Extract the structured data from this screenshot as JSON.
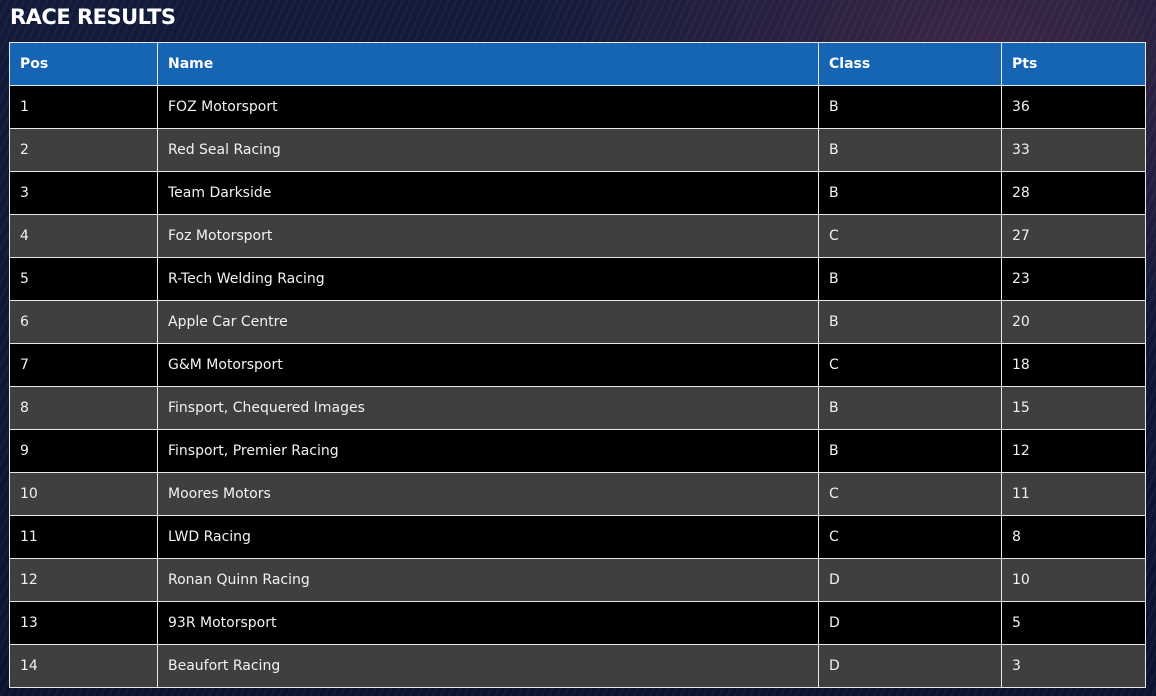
{
  "page": {
    "title": "RACE RESULTS"
  },
  "table": {
    "headers": {
      "pos": "Pos",
      "name": "Name",
      "class": "Class",
      "pts": "Pts"
    },
    "rows": [
      {
        "pos": "1",
        "name": "FOZ Motorsport",
        "class": "B",
        "pts": "36"
      },
      {
        "pos": "2",
        "name": "Red Seal Racing",
        "class": "B",
        "pts": "33"
      },
      {
        "pos": "3",
        "name": "Team Darkside",
        "class": "B",
        "pts": "28"
      },
      {
        "pos": "4",
        "name": "Foz Motorsport",
        "class": "C",
        "pts": "27"
      },
      {
        "pos": "5",
        "name": "R-Tech Welding Racing",
        "class": "B",
        "pts": "23"
      },
      {
        "pos": "6",
        "name": "Apple Car Centre",
        "class": "B",
        "pts": "20"
      },
      {
        "pos": "7",
        "name": "G&M Motorsport",
        "class": "C",
        "pts": "18"
      },
      {
        "pos": "8",
        "name": "Finsport, Chequered Images",
        "class": "B",
        "pts": "15"
      },
      {
        "pos": "9",
        "name": "Finsport, Premier Racing",
        "class": "B",
        "pts": "12"
      },
      {
        "pos": "10",
        "name": "Moores Motors",
        "class": "C",
        "pts": "11"
      },
      {
        "pos": "11",
        "name": "LWD Racing",
        "class": "C",
        "pts": "8"
      },
      {
        "pos": "12",
        "name": "Ronan Quinn Racing",
        "class": "D",
        "pts": "10"
      },
      {
        "pos": "13",
        "name": "93R Motorsport",
        "class": "D",
        "pts": "5"
      },
      {
        "pos": "14",
        "name": "Beaufort Racing",
        "class": "D",
        "pts": "3"
      }
    ]
  },
  "colors": {
    "header_bg": "#1665b4",
    "row_dark": "#000000",
    "row_gray": "#3f3f3f",
    "page_bg": "#0d1530"
  }
}
